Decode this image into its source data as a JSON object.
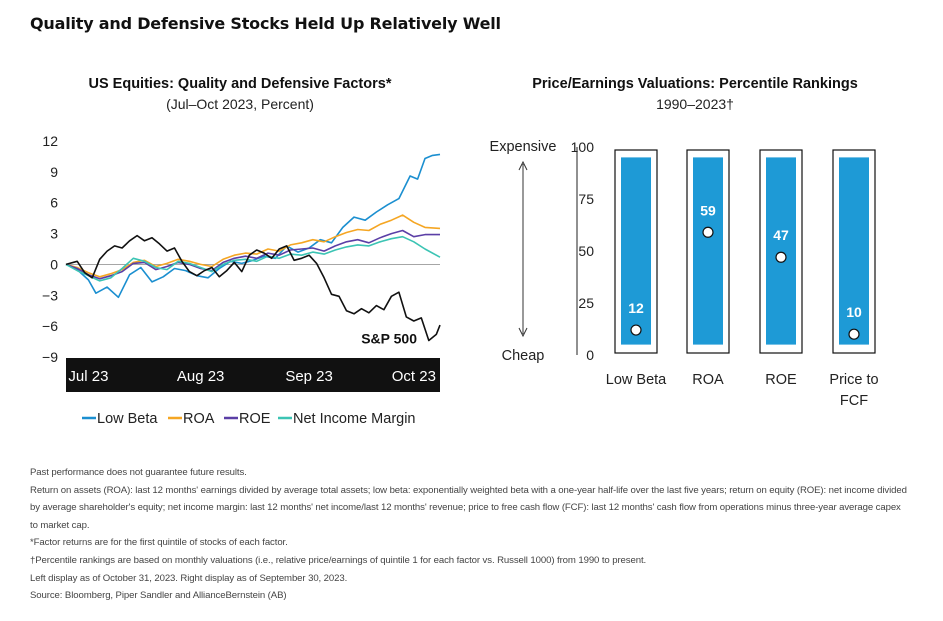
{
  "page_title": "Quality and Defensive Stocks Held Up Relatively Well",
  "chart_data": [
    {
      "type": "line",
      "title": "US Equities: Quality and Defensive Factors*",
      "subtitle": "(Jul–Oct 2023, Percent)",
      "ylim": [
        -9,
        12
      ],
      "yticks": [
        "12",
        "9",
        "6",
        "3",
        "0",
        "−3",
        "−6",
        "−9"
      ],
      "ytick_values": [
        12,
        9,
        6,
        3,
        0,
        -3,
        -6,
        -9
      ],
      "xlim": [
        0,
        100
      ],
      "xticks": [
        {
          "label": "Jul 23",
          "x": 6
        },
        {
          "label": "Aug 23",
          "x": 36
        },
        {
          "label": "Sep 23",
          "x": 65
        },
        {
          "label": "Oct 23",
          "x": 93
        }
      ],
      "annotation": "S&P 500",
      "legend_position": "bottom",
      "series": [
        {
          "name": "Low Beta",
          "color": "#1b8fd0",
          "x": [
            0,
            3,
            6,
            8,
            11,
            14,
            17,
            20,
            23,
            26,
            29,
            32,
            35,
            38,
            41,
            44,
            47,
            50,
            53,
            56,
            59,
            62,
            65,
            68,
            71,
            74,
            77,
            80,
            83,
            86,
            89,
            92,
            94,
            96,
            98,
            100
          ],
          "y": [
            0,
            -0.5,
            -1.5,
            -2.8,
            -2.2,
            -3.2,
            -1.0,
            -0.3,
            -1.7,
            -1.2,
            -0.4,
            -0.6,
            -1.1,
            -1.3,
            -0.4,
            0.3,
            0.1,
            0.4,
            0.8,
            0.6,
            1.8,
            1.2,
            1.6,
            2.4,
            2.1,
            3.6,
            4.6,
            4.3,
            5.1,
            5.8,
            6.4,
            8.6,
            8.3,
            10.3,
            10.6,
            10.7
          ]
        },
        {
          "name": "ROA",
          "color": "#f5a623",
          "x": [
            0,
            3,
            6,
            9,
            12,
            15,
            18,
            21,
            24,
            27,
            30,
            33,
            36,
            39,
            42,
            45,
            48,
            51,
            54,
            57,
            60,
            63,
            66,
            69,
            72,
            75,
            78,
            81,
            84,
            87,
            90,
            93,
            96,
            100
          ],
          "y": [
            0,
            -0.3,
            -0.8,
            -1.2,
            -0.9,
            -0.5,
            0.2,
            0.4,
            -0.2,
            0.1,
            0.5,
            0.3,
            0.0,
            -0.2,
            0.5,
            0.9,
            1.1,
            1.0,
            1.5,
            1.3,
            1.9,
            2.1,
            2.4,
            2.2,
            2.7,
            3.1,
            3.4,
            3.3,
            3.9,
            4.3,
            4.8,
            4.1,
            3.6,
            3.5
          ]
        },
        {
          "name": "ROE",
          "color": "#5b3fa6",
          "x": [
            0,
            3,
            6,
            9,
            12,
            15,
            18,
            21,
            24,
            27,
            30,
            33,
            36,
            39,
            42,
            45,
            48,
            51,
            54,
            57,
            60,
            63,
            66,
            69,
            72,
            75,
            78,
            81,
            84,
            87,
            90,
            93,
            96,
            100
          ],
          "y": [
            0,
            -0.4,
            -1.0,
            -1.4,
            -1.1,
            -0.7,
            0.1,
            0.2,
            -0.5,
            -0.2,
            0.2,
            0.0,
            -0.4,
            -0.6,
            0.2,
            0.6,
            0.8,
            0.6,
            1.1,
            0.9,
            1.4,
            1.5,
            1.6,
            1.3,
            1.8,
            2.2,
            2.4,
            2.1,
            2.6,
            3.0,
            3.3,
            2.7,
            2.9,
            2.9
          ]
        },
        {
          "name": "Net Income Margin",
          "color": "#3cc4b4",
          "x": [
            0,
            3,
            6,
            9,
            12,
            15,
            18,
            21,
            24,
            27,
            30,
            33,
            36,
            39,
            42,
            45,
            48,
            51,
            54,
            57,
            60,
            63,
            66,
            69,
            72,
            75,
            78,
            81,
            84,
            87,
            90,
            93,
            96,
            100
          ],
          "y": [
            0,
            -0.6,
            -1.1,
            -1.6,
            -1.3,
            -0.4,
            0.6,
            0.3,
            -0.3,
            -0.5,
            0.3,
            0.1,
            -0.3,
            -0.7,
            0.0,
            0.4,
            0.5,
            0.3,
            0.8,
            0.6,
            1.0,
            0.9,
            1.2,
            1.0,
            1.4,
            1.7,
            1.9,
            1.8,
            2.2,
            2.5,
            2.7,
            2.2,
            1.5,
            0.7
          ]
        },
        {
          "name": "S&P 500",
          "color": "#111111",
          "x": [
            0,
            3,
            5,
            7,
            9,
            11,
            13,
            15,
            17,
            19,
            21,
            23,
            25,
            27,
            29,
            31,
            33,
            35,
            37,
            39,
            41,
            43,
            45,
            47,
            49,
            51,
            53,
            55,
            57,
            59,
            61,
            63,
            65,
            67,
            69,
            71,
            73,
            75,
            77,
            79,
            81,
            83,
            85,
            87,
            89,
            91,
            93,
            95,
            97,
            99,
            100
          ],
          "y": [
            0,
            0.3,
            -0.8,
            -1.3,
            0.5,
            1.3,
            1.8,
            1.6,
            2.3,
            2.8,
            2.3,
            2.6,
            2.0,
            1.3,
            1.6,
            0.3,
            -0.7,
            -1.1,
            -0.6,
            -0.3,
            -1.2,
            -0.6,
            0.2,
            -0.7,
            0.9,
            1.4,
            1.1,
            0.6,
            1.5,
            1.8,
            0.4,
            0.6,
            0.9,
            0.1,
            -1.3,
            -2.9,
            -3.1,
            -4.5,
            -4.8,
            -4.3,
            -4.7,
            -4.0,
            -4.4,
            -3.1,
            -2.7,
            -5.1,
            -5.5,
            -5.2,
            -7.4,
            -6.8,
            -5.9
          ]
        }
      ],
      "legend": [
        "Low Beta",
        "ROA",
        "ROE",
        "Net Income Margin"
      ]
    },
    {
      "type": "bar",
      "title": "Price/Earnings Valuations: Percentile Rankings",
      "subtitle": "1990–2023†",
      "ylim": [
        0,
        100
      ],
      "yticks": [
        "100",
        "75",
        "50",
        "25",
        "0"
      ],
      "ytick_values": [
        100,
        75,
        50,
        25,
        0
      ],
      "top_label": "Expensive",
      "bottom_label": "Cheap",
      "categories": [
        "Low Beta",
        "ROA",
        "ROE",
        "Price to FCF"
      ],
      "category_lines": [
        [
          "Low Beta"
        ],
        [
          "ROA"
        ],
        [
          "ROE"
        ],
        [
          "Price to",
          "FCF"
        ]
      ],
      "values": [
        12,
        59,
        47,
        10
      ],
      "value_labels": [
        "12",
        "59",
        "47",
        "10"
      ],
      "range_max": 100,
      "bar_color": "#1e9ad6"
    }
  ],
  "notes": [
    "Past performance does not guarantee future results.",
    "Return on assets (ROA): last 12 months' earnings divided by average total assets; low beta: exponentially weighted beta with a one-year half-life over the last five years; return on equity (ROE): net income divided by average shareholder's equity; net income margin: last 12 months' net income/last 12 months' revenue; price to free cash flow (FCF): last 12 months' cash flow from operations minus three-year average capex to market cap.",
    "*Factor returns are for the first quintile of stocks of each factor.",
    "†Percentile rankings are based on monthly valuations (i.e., relative price/earnings of quintile 1 for each factor vs. Russell 1000) from 1990 to present.",
    "Left display as of October 31, 2023. Right display as of September 30, 2023.",
    "Source: Bloomberg, Piper Sandler and AllianceBernstein (AB)"
  ]
}
